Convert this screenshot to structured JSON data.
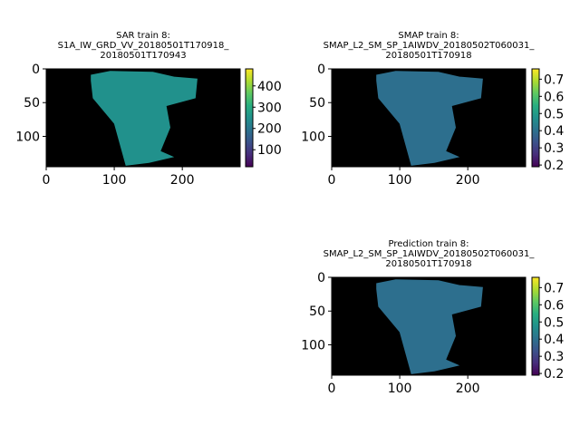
{
  "chart_data": [
    {
      "type": "heatmap",
      "title_lines": [
        "SAR train 8:",
        "S1A_IW_GRD_VV_20180501T170918_",
        "20180501T170943"
      ],
      "colormap": "viridis",
      "background_color": "#000000",
      "xlim": [
        0,
        285
      ],
      "ylim": [
        145,
        0
      ],
      "xticks": [
        0,
        100,
        200
      ],
      "yticks": [
        0,
        50,
        100
      ],
      "colorbar": {
        "min": 20,
        "max": 480,
        "ticks": [
          100,
          200,
          300,
          400
        ]
      },
      "typical_value": 250
    },
    {
      "type": "heatmap",
      "title_lines": [
        "SMAP train 8:",
        "SMAP_L2_SM_SP_1AIWDV_20180502T060031_",
        "20180501T170918"
      ],
      "colormap": "viridis",
      "background_color": "#000000",
      "xlim": [
        0,
        285
      ],
      "ylim": [
        145,
        0
      ],
      "xticks": [
        0,
        100,
        200
      ],
      "yticks": [
        0,
        50,
        100
      ],
      "colorbar": {
        "min": 0.19,
        "max": 0.76,
        "ticks": [
          0.2,
          0.3,
          0.4,
          0.5,
          0.6,
          0.7
        ]
      },
      "typical_value": 0.4
    },
    {
      "type": "heatmap",
      "title_lines": [
        "Prediction train 8:",
        "SMAP_L2_SM_SP_1AIWDV_20180502T060031_",
        "20180501T170918"
      ],
      "colormap": "viridis",
      "background_color": "#000000",
      "xlim": [
        0,
        285
      ],
      "ylim": [
        145,
        0
      ],
      "xticks": [
        0,
        100,
        200
      ],
      "yticks": [
        0,
        50,
        100
      ],
      "colorbar": {
        "min": 0.19,
        "max": 0.76,
        "ticks": [
          0.2,
          0.3,
          0.4,
          0.5,
          0.6,
          0.7
        ]
      },
      "typical_value": 0.4
    }
  ]
}
